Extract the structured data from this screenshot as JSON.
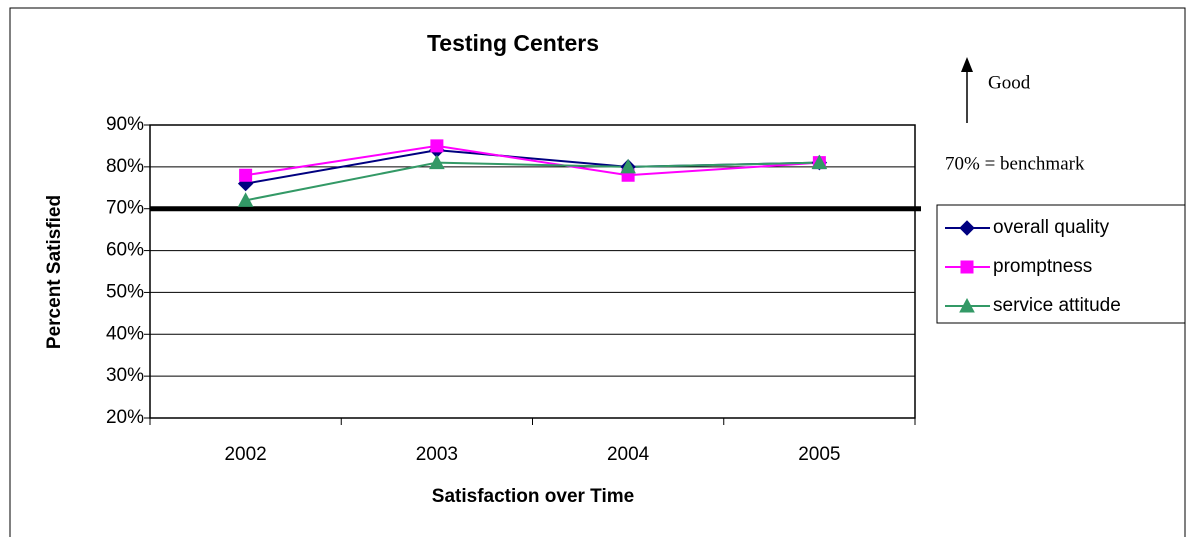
{
  "chart_data": {
    "type": "line",
    "title": "Testing Centers",
    "x_label": "Satisfaction over Time",
    "y_label": "Percent Satisfied",
    "categories": [
      "2002",
      "2003",
      "2004",
      "2005"
    ],
    "series": [
      {
        "name": "overall quality",
        "color": "#000080",
        "marker": "diamond",
        "values": [
          76,
          84,
          80,
          81
        ]
      },
      {
        "name": "promptness",
        "color": "#ff00ff",
        "marker": "square",
        "values": [
          78,
          85,
          78,
          81
        ]
      },
      {
        "name": "service attitude",
        "color": "#339966",
        "marker": "triangle",
        "values": [
          72,
          81,
          80,
          81
        ]
      }
    ],
    "ylim": [
      20,
      90
    ],
    "yticks": [
      {
        "value": 20,
        "label": "20%"
      },
      {
        "value": 30,
        "label": "30%"
      },
      {
        "value": 40,
        "label": "40%"
      },
      {
        "value": 50,
        "label": "50%"
      },
      {
        "value": 60,
        "label": "60%"
      },
      {
        "value": 70,
        "label": "70%"
      },
      {
        "value": 80,
        "label": "80%"
      },
      {
        "value": 90,
        "label": "90%"
      }
    ],
    "grid": true,
    "legend": "right",
    "benchmark": {
      "value": 70,
      "label": "70% = benchmark"
    },
    "annotation": "Good"
  }
}
